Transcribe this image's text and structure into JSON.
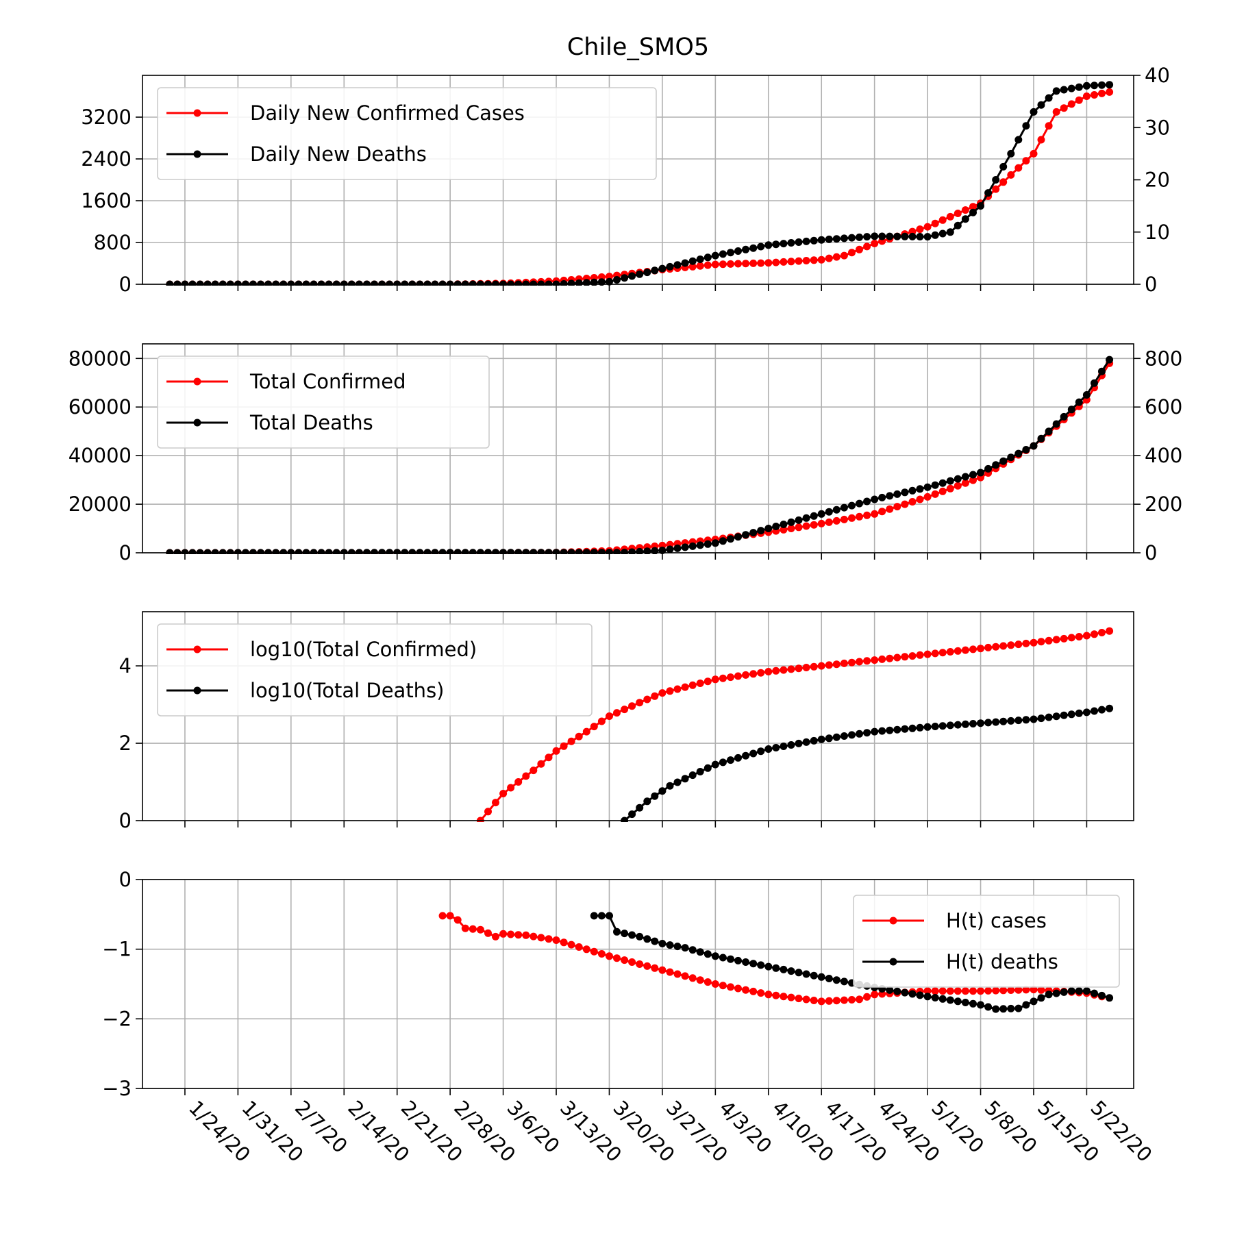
{
  "figure": {
    "title": "Chile_SMO5"
  },
  "colors": {
    "cases": "#ff0000",
    "deaths": "#000000",
    "grid": "#b0b0b0"
  },
  "chart_data": [
    {
      "type": "line",
      "panel": "daily",
      "grid": true,
      "legend_position": "upper-left",
      "x_dates": {
        "start": "1/22/20",
        "end": "5/25/20"
      },
      "x_tick_labels": [
        "1/24/20",
        "1/31/20",
        "2/7/20",
        "2/14/20",
        "2/21/20",
        "2/28/20",
        "3/6/20",
        "3/13/20",
        "3/20/20",
        "3/27/20",
        "4/3/20",
        "4/10/20",
        "4/17/20",
        "4/24/20",
        "5/1/20",
        "5/8/20",
        "5/15/20",
        "5/22/20"
      ],
      "y_left": {
        "lim": [
          0,
          4000
        ],
        "ticks": [
          0,
          800,
          1600,
          2400,
          3200
        ],
        "tick_labels": [
          "0",
          "800",
          "1600",
          "2400",
          "3200"
        ]
      },
      "y_right": {
        "lim": [
          0,
          40
        ],
        "ticks": [
          0,
          10,
          20,
          30,
          40
        ],
        "tick_labels": [
          "0",
          "10",
          "20",
          "30",
          "40"
        ]
      },
      "series": [
        {
          "name": "Daily New Confirmed Cases",
          "axis": "left",
          "color": "#ff0000",
          "points": [
            [
              "1/22/20",
              0
            ],
            [
              "2/28/20",
              0
            ],
            [
              "3/6/20",
              15
            ],
            [
              "3/13/20",
              60
            ],
            [
              "3/20/20",
              150
            ],
            [
              "3/27/20",
              280
            ],
            [
              "4/3/20",
              380
            ],
            [
              "4/10/20",
              410
            ],
            [
              "4/17/20",
              470
            ],
            [
              "4/20/20",
              550
            ],
            [
              "4/24/20",
              780
            ],
            [
              "5/1/20",
              1100
            ],
            [
              "5/8/20",
              1550
            ],
            [
              "5/15/20",
              2500
            ],
            [
              "5/18/20",
              3300
            ],
            [
              "5/22/20",
              3600
            ],
            [
              "5/25/20",
              3680
            ]
          ]
        },
        {
          "name": "Daily New Deaths",
          "axis": "right",
          "color": "#000000",
          "points": [
            [
              "1/22/20",
              0
            ],
            [
              "3/13/20",
              0
            ],
            [
              "3/20/20",
              0.5
            ],
            [
              "3/27/20",
              3
            ],
            [
              "4/3/20",
              5.5
            ],
            [
              "4/10/20",
              7.5
            ],
            [
              "4/17/20",
              8.5
            ],
            [
              "4/24/20",
              9.2
            ],
            [
              "5/1/20",
              9.1
            ],
            [
              "5/4/20",
              10
            ],
            [
              "5/8/20",
              15
            ],
            [
              "5/12/20",
              25
            ],
            [
              "5/15/20",
              33
            ],
            [
              "5/18/20",
              37
            ],
            [
              "5/22/20",
              38
            ],
            [
              "5/25/20",
              38.2
            ]
          ]
        }
      ]
    },
    {
      "type": "line",
      "panel": "totals",
      "grid": true,
      "legend_position": "upper-left",
      "y_left": {
        "lim": [
          0,
          86000
        ],
        "ticks": [
          0,
          20000,
          40000,
          60000,
          80000
        ],
        "tick_labels": [
          "0",
          "20000",
          "40000",
          "60000",
          "80000"
        ]
      },
      "y_right": {
        "lim": [
          0,
          860
        ],
        "ticks": [
          0,
          200,
          400,
          600,
          800
        ],
        "tick_labels": [
          "0",
          "200",
          "400",
          "600",
          "800"
        ]
      },
      "series": [
        {
          "name": "Total Confirmed",
          "axis": "left",
          "color": "#ff0000",
          "points": [
            [
              "1/22/20",
              0
            ],
            [
              "3/3/20",
              1
            ],
            [
              "3/13/20",
              100
            ],
            [
              "3/20/20",
              800
            ],
            [
              "3/27/20",
              3000
            ],
            [
              "4/3/20",
              5500
            ],
            [
              "4/10/20",
              8500
            ],
            [
              "4/17/20",
              12000
            ],
            [
              "4/24/20",
              16000
            ],
            [
              "5/1/20",
              23000
            ],
            [
              "5/8/20",
              31000
            ],
            [
              "5/15/20",
              44000
            ],
            [
              "5/22/20",
              63000
            ],
            [
              "5/25/20",
              78000
            ]
          ]
        },
        {
          "name": "Total Deaths",
          "axis": "right",
          "color": "#000000",
          "points": [
            [
              "1/22/20",
              0
            ],
            [
              "3/22/20",
              1
            ],
            [
              "3/27/20",
              10
            ],
            [
              "4/3/20",
              40
            ],
            [
              "4/10/20",
              100
            ],
            [
              "4/17/20",
              160
            ],
            [
              "4/24/20",
              220
            ],
            [
              "5/1/20",
              270
            ],
            [
              "5/8/20",
              330
            ],
            [
              "5/15/20",
              440
            ],
            [
              "5/22/20",
              650
            ],
            [
              "5/25/20",
              795
            ]
          ]
        }
      ]
    },
    {
      "type": "line",
      "panel": "log10",
      "grid": true,
      "legend_position": "upper-left",
      "y_left": {
        "lim": [
          0,
          5.4
        ],
        "ticks": [
          0,
          2,
          4
        ],
        "tick_labels": [
          "0",
          "2",
          "4"
        ]
      },
      "series": [
        {
          "name": "log10(Total Confirmed)",
          "axis": "left",
          "color": "#ff0000",
          "points": [
            [
              "3/3/20",
              0
            ],
            [
              "3/6/20",
              0.7
            ],
            [
              "3/10/20",
              1.3
            ],
            [
              "3/13/20",
              1.8
            ],
            [
              "3/17/20",
              2.3
            ],
            [
              "3/20/20",
              2.7
            ],
            [
              "3/24/20",
              3.05
            ],
            [
              "3/27/20",
              3.3
            ],
            [
              "4/3/20",
              3.65
            ],
            [
              "4/10/20",
              3.85
            ],
            [
              "4/17/20",
              4.0
            ],
            [
              "4/24/20",
              4.15
            ],
            [
              "5/1/20",
              4.3
            ],
            [
              "5/8/20",
              4.45
            ],
            [
              "5/15/20",
              4.6
            ],
            [
              "5/22/20",
              4.78
            ],
            [
              "5/25/20",
              4.9
            ]
          ]
        },
        {
          "name": "log10(Total Deaths)",
          "axis": "left",
          "color": "#000000",
          "points": [
            [
              "3/22/20",
              0
            ],
            [
              "3/25/20",
              0.5
            ],
            [
              "3/28/20",
              0.9
            ],
            [
              "4/3/20",
              1.45
            ],
            [
              "4/10/20",
              1.85
            ],
            [
              "4/17/20",
              2.1
            ],
            [
              "4/24/20",
              2.3
            ],
            [
              "5/1/20",
              2.42
            ],
            [
              "5/8/20",
              2.52
            ],
            [
              "5/15/20",
              2.62
            ],
            [
              "5/22/20",
              2.8
            ],
            [
              "5/25/20",
              2.9
            ]
          ]
        }
      ]
    },
    {
      "type": "line",
      "panel": "hurst",
      "grid": true,
      "legend_position": "upper-right",
      "y_left": {
        "lim": [
          -3,
          0
        ],
        "ticks": [
          -3,
          -2,
          -1,
          0
        ],
        "tick_labels": [
          "−3",
          "−2",
          "−1",
          "0"
        ]
      },
      "series": [
        {
          "name": "H(t) cases",
          "axis": "left",
          "color": "#ff0000",
          "points": [
            [
              "2/27/20",
              -0.52
            ],
            [
              "2/28/20",
              -0.52
            ],
            [
              "2/29/20",
              -0.58
            ],
            [
              "3/1/20",
              -0.7
            ],
            [
              "3/3/20",
              -0.72
            ],
            [
              "3/5/20",
              -0.82
            ],
            [
              "3/6/20",
              -0.78
            ],
            [
              "3/9/20",
              -0.8
            ],
            [
              "3/13/20",
              -0.87
            ],
            [
              "3/20/20",
              -1.1
            ],
            [
              "3/27/20",
              -1.3
            ],
            [
              "4/3/20",
              -1.5
            ],
            [
              "4/10/20",
              -1.65
            ],
            [
              "4/17/20",
              -1.75
            ],
            [
              "4/22/20",
              -1.72
            ],
            [
              "4/24/20",
              -1.65
            ],
            [
              "5/1/20",
              -1.6
            ],
            [
              "5/8/20",
              -1.6
            ],
            [
              "5/15/20",
              -1.58
            ],
            [
              "5/18/20",
              -1.6
            ],
            [
              "5/22/20",
              -1.63
            ],
            [
              "5/24/20",
              -1.68
            ]
          ]
        },
        {
          "name": "H(t) deaths",
          "axis": "left",
          "color": "#000000",
          "points": [
            [
              "3/18/20",
              -0.52
            ],
            [
              "3/20/20",
              -0.52
            ],
            [
              "3/21/20",
              -0.75
            ],
            [
              "3/24/20",
              -0.82
            ],
            [
              "3/27/20",
              -0.92
            ],
            [
              "3/30/20",
              -0.98
            ],
            [
              "4/3/20",
              -1.1
            ],
            [
              "4/10/20",
              -1.25
            ],
            [
              "4/17/20",
              -1.4
            ],
            [
              "4/24/20",
              -1.55
            ],
            [
              "5/1/20",
              -1.68
            ],
            [
              "5/8/20",
              -1.8
            ],
            [
              "5/10/20",
              -1.86
            ],
            [
              "5/13/20",
              -1.85
            ],
            [
              "5/17/20",
              -1.65
            ],
            [
              "5/20/20",
              -1.6
            ],
            [
              "5/22/20",
              -1.6
            ],
            [
              "5/25/20",
              -1.7
            ]
          ]
        }
      ]
    }
  ]
}
